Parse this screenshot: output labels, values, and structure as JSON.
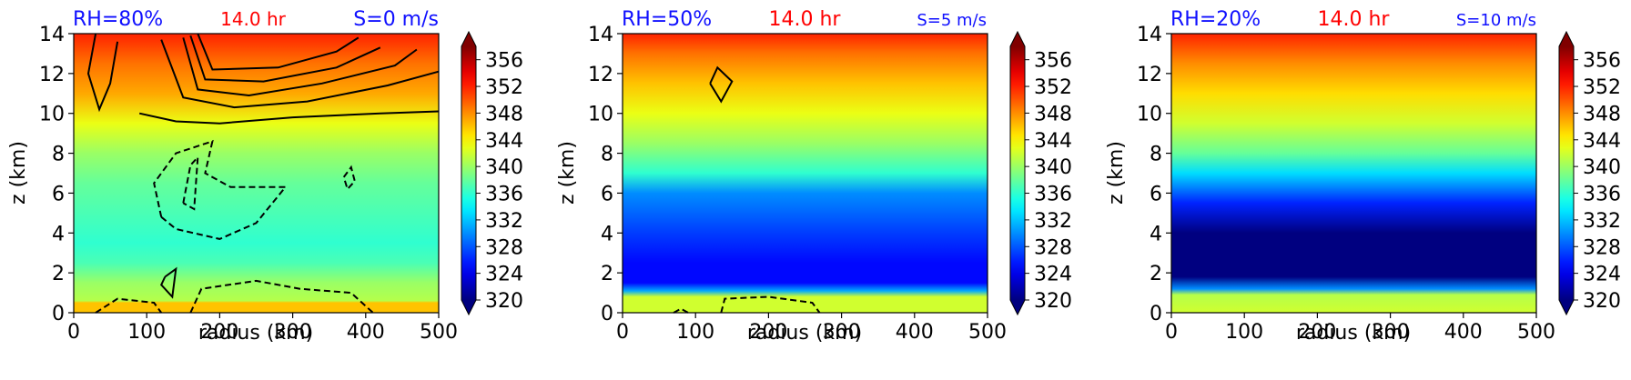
{
  "chart_data": [
    {
      "type": "heatmap",
      "title_left": "RH=80%",
      "title_center": "14.0 hr",
      "title_right": "S=0 m/s",
      "xlabel": "radius (km)",
      "ylabel": "z (km)",
      "xlim": [
        0,
        500
      ],
      "ylim": [
        0,
        14
      ],
      "xticks": [
        0,
        100,
        200,
        300,
        400,
        500
      ],
      "yticks": [
        0,
        2,
        4,
        6,
        8,
        10,
        12,
        14
      ],
      "colorbar": {
        "range": [
          320,
          358
        ],
        "ticks": [
          320,
          324,
          328,
          332,
          336,
          340,
          344,
          348,
          352,
          356
        ],
        "extend": "both"
      },
      "field_profile": [
        [
          0,
          346
        ],
        [
          0.5,
          346
        ],
        [
          0.6,
          341
        ],
        [
          1.5,
          340
        ],
        [
          2.5,
          337
        ],
        [
          3.5,
          336
        ],
        [
          5,
          337
        ],
        [
          6.5,
          338
        ],
        [
          8,
          340
        ],
        [
          9.5,
          343
        ],
        [
          11,
          347
        ],
        [
          12.5,
          349
        ],
        [
          13.5,
          351
        ],
        [
          14,
          352
        ]
      ],
      "contours_solid": [
        [
          [
            90,
            10
          ],
          [
            140,
            9.6
          ],
          [
            200,
            9.5
          ],
          [
            300,
            9.8
          ],
          [
            420,
            10.0
          ],
          [
            500,
            10.1
          ]
        ],
        [
          [
            120,
            13.7
          ],
          [
            150,
            10.8
          ],
          [
            220,
            10.3
          ],
          [
            320,
            10.6
          ],
          [
            430,
            11.4
          ],
          [
            500,
            12.1
          ]
        ],
        [
          [
            150,
            13.8
          ],
          [
            170,
            11.2
          ],
          [
            240,
            10.9
          ],
          [
            340,
            11.5
          ],
          [
            440,
            12.4
          ],
          [
            470,
            13.2
          ]
        ],
        [
          [
            160,
            13.9
          ],
          [
            180,
            11.7
          ],
          [
            260,
            11.6
          ],
          [
            360,
            12.3
          ],
          [
            420,
            13.3
          ]
        ],
        [
          [
            170,
            14
          ],
          [
            190,
            12.2
          ],
          [
            280,
            12.3
          ],
          [
            360,
            13.1
          ],
          [
            390,
            13.8
          ]
        ],
        [
          [
            30,
            14
          ],
          [
            20,
            12
          ],
          [
            35,
            10.2
          ],
          [
            50,
            11.5
          ],
          [
            60,
            13.6
          ]
        ],
        [
          [
            125,
            1.8
          ],
          [
            140,
            2.2
          ],
          [
            135,
            0.8
          ],
          [
            120,
            1.4
          ],
          [
            125,
            1.8
          ]
        ]
      ],
      "contours_dashed": [
        [
          [
            120,
            4.8
          ],
          [
            110,
            6.5
          ],
          [
            140,
            8
          ],
          [
            190,
            8.6
          ],
          [
            180,
            7
          ],
          [
            215,
            6.3
          ],
          [
            290,
            6.3
          ],
          [
            250,
            4.5
          ],
          [
            200,
            3.7
          ],
          [
            140,
            4.2
          ],
          [
            120,
            4.8
          ]
        ],
        [
          [
            150,
            5.5
          ],
          [
            160,
            7.4
          ],
          [
            170,
            7.8
          ],
          [
            165,
            5.2
          ],
          [
            150,
            5.5
          ]
        ],
        [
          [
            370,
            6.8
          ],
          [
            380,
            7.3
          ],
          [
            385,
            6.6
          ],
          [
            375,
            6.2
          ],
          [
            370,
            6.8
          ]
        ],
        [
          [
            160,
            0
          ],
          [
            175,
            1.2
          ],
          [
            250,
            1.6
          ],
          [
            310,
            1.2
          ],
          [
            380,
            1.0
          ],
          [
            410,
            0
          ]
        ],
        [
          [
            30,
            0
          ],
          [
            60,
            0.7
          ],
          [
            110,
            0.5
          ],
          [
            120,
            0
          ]
        ]
      ]
    },
    {
      "type": "heatmap",
      "title_left": "RH=50%",
      "title_center": "14.0 hr",
      "title_right": "S=5 m/s",
      "xlabel": "radius (km)",
      "ylabel": "z (km)",
      "xlim": [
        0,
        500
      ],
      "ylim": [
        0,
        14
      ],
      "xticks": [
        0,
        100,
        200,
        300,
        400,
        500
      ],
      "yticks": [
        0,
        2,
        4,
        6,
        8,
        10,
        12,
        14
      ],
      "colorbar": {
        "range": [
          320,
          358
        ],
        "ticks": [
          320,
          324,
          328,
          332,
          336,
          340,
          344,
          348,
          352,
          356
        ],
        "extend": "both"
      },
      "field_profile": [
        [
          0,
          342
        ],
        [
          0.8,
          342
        ],
        [
          1.1,
          331
        ],
        [
          1.5,
          325
        ],
        [
          2.5,
          325
        ],
        [
          4,
          327
        ],
        [
          6,
          330
        ],
        [
          7,
          336
        ],
        [
          8.5,
          340
        ],
        [
          10,
          343
        ],
        [
          11.5,
          346
        ],
        [
          13,
          349
        ],
        [
          14,
          352
        ]
      ],
      "contours_solid": [
        [
          [
            120,
            11.5
          ],
          [
            130,
            12.3
          ],
          [
            150,
            11.6
          ],
          [
            135,
            10.6
          ],
          [
            120,
            11.5
          ]
        ]
      ],
      "contours_dashed": [
        [
          [
            135,
            0
          ],
          [
            140,
            0.7
          ],
          [
            200,
            0.8
          ],
          [
            260,
            0.5
          ],
          [
            270,
            0
          ]
        ],
        [
          [
            70,
            0
          ],
          [
            80,
            0.2
          ],
          [
            90,
            0
          ]
        ]
      ]
    },
    {
      "type": "heatmap",
      "title_left": "RH=20%",
      "title_center": "14.0 hr",
      "title_right": "S=10 m/s",
      "xlabel": "radius (km)",
      "ylabel": "z (km)",
      "xlim": [
        0,
        500
      ],
      "ylim": [
        0,
        14
      ],
      "xticks": [
        0,
        100,
        200,
        300,
        400,
        500
      ],
      "yticks": [
        0,
        2,
        4,
        6,
        8,
        10,
        12,
        14
      ],
      "colorbar": {
        "range": [
          320,
          358
        ],
        "ticks": [
          320,
          324,
          328,
          332,
          336,
          340,
          344,
          348,
          352,
          356
        ],
        "extend": "both"
      },
      "field_profile": [
        [
          0,
          342
        ],
        [
          0.9,
          341
        ],
        [
          1.2,
          330
        ],
        [
          1.8,
          320
        ],
        [
          4,
          320
        ],
        [
          5.5,
          326
        ],
        [
          7,
          333
        ],
        [
          8,
          338
        ],
        [
          9.5,
          342
        ],
        [
          11,
          345
        ],
        [
          12.5,
          348
        ],
        [
          14,
          352
        ]
      ],
      "contours_solid": [],
      "contours_dashed": []
    }
  ]
}
